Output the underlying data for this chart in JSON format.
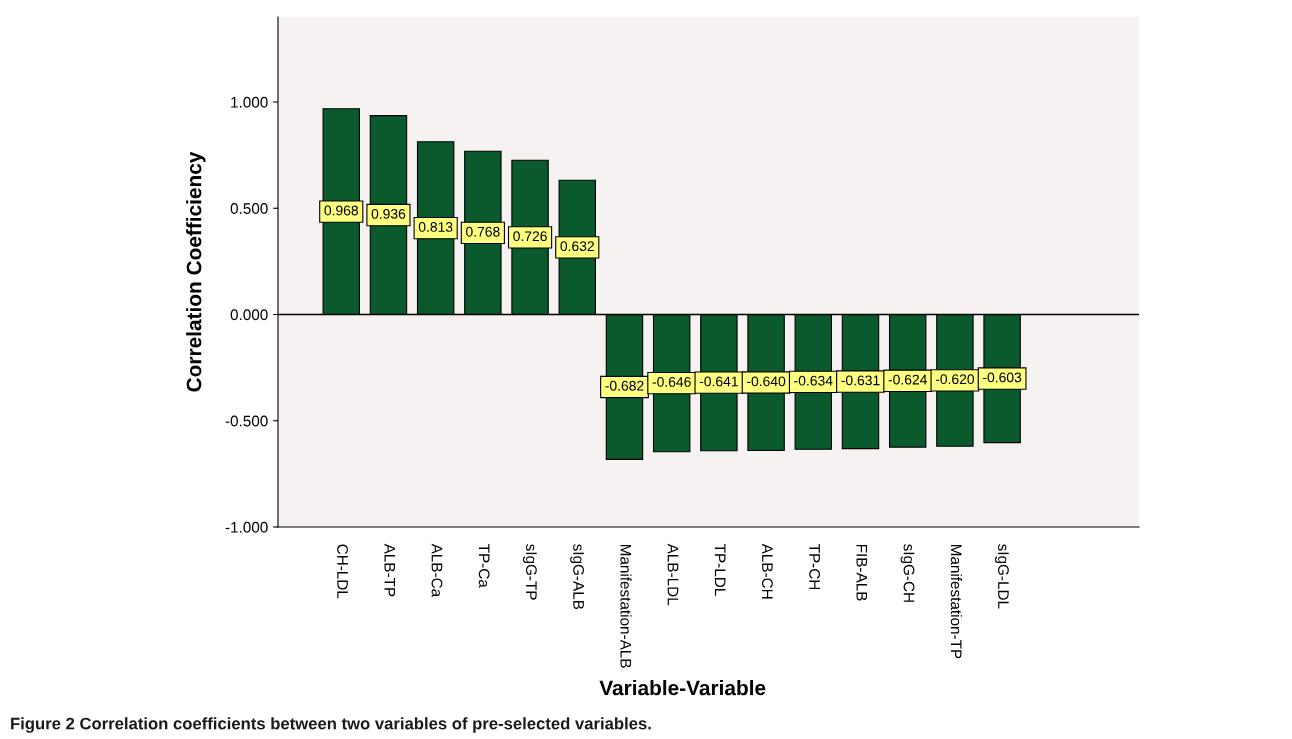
{
  "chart_data": {
    "type": "bar",
    "xlabel": "Variable-Variable",
    "ylabel": "Correlation Coefficiency",
    "categories": [
      "CH-LDL",
      "ALB-TP",
      "ALB-Ca",
      "TP-Ca",
      "sIgG-TP",
      "sIgG-ALB",
      "Manifestation-ALB",
      "ALB-LDL",
      "TP-LDL",
      "ALB-CH",
      "TP-CH",
      "FIB-ALB",
      "sIgG-CH",
      "Manifestation-TP",
      "sIgG-LDL"
    ],
    "values": [
      0.968,
      0.936,
      0.813,
      0.768,
      0.726,
      0.632,
      -0.682,
      -0.646,
      -0.641,
      -0.64,
      -0.634,
      -0.631,
      -0.624,
      -0.62,
      -0.603
    ],
    "color": "#0b5a2e",
    "value_labels": [
      "0.968",
      "0.936",
      "0.813",
      "0.768",
      "0.726",
      "0.632",
      "-0.682",
      "-0.646",
      "-0.641",
      "-0.640",
      "-0.634",
      "-0.631",
      "-0.624",
      "-0.620",
      "-0.603"
    ],
    "ylim": [
      -1,
      1.4
    ],
    "yticks": [
      {
        "value": -1,
        "label": "-1.000"
      },
      {
        "value": -0.5,
        "label": "-0.500"
      },
      {
        "value": 0,
        "label": "0.000"
      },
      {
        "value": 0.5,
        "label": "0.500"
      },
      {
        "value": 1,
        "label": "1.000"
      }
    ],
    "ref_lines": [
      {
        "axis": "y",
        "value": 0,
        "color": "#000000"
      }
    ],
    "grid": false,
    "legend": false,
    "annotations": [
      "Figure 2 Correlation coefficients between two variables of pre-selected variables."
    ]
  }
}
